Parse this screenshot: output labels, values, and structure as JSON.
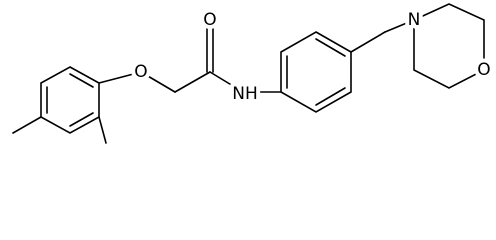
{
  "atoms": [
    {
      "label": "O"
    },
    {
      "label": "O"
    },
    {
      "label": "NH"
    },
    {
      "label": "N"
    },
    {
      "label": "O"
    }
  ]
}
